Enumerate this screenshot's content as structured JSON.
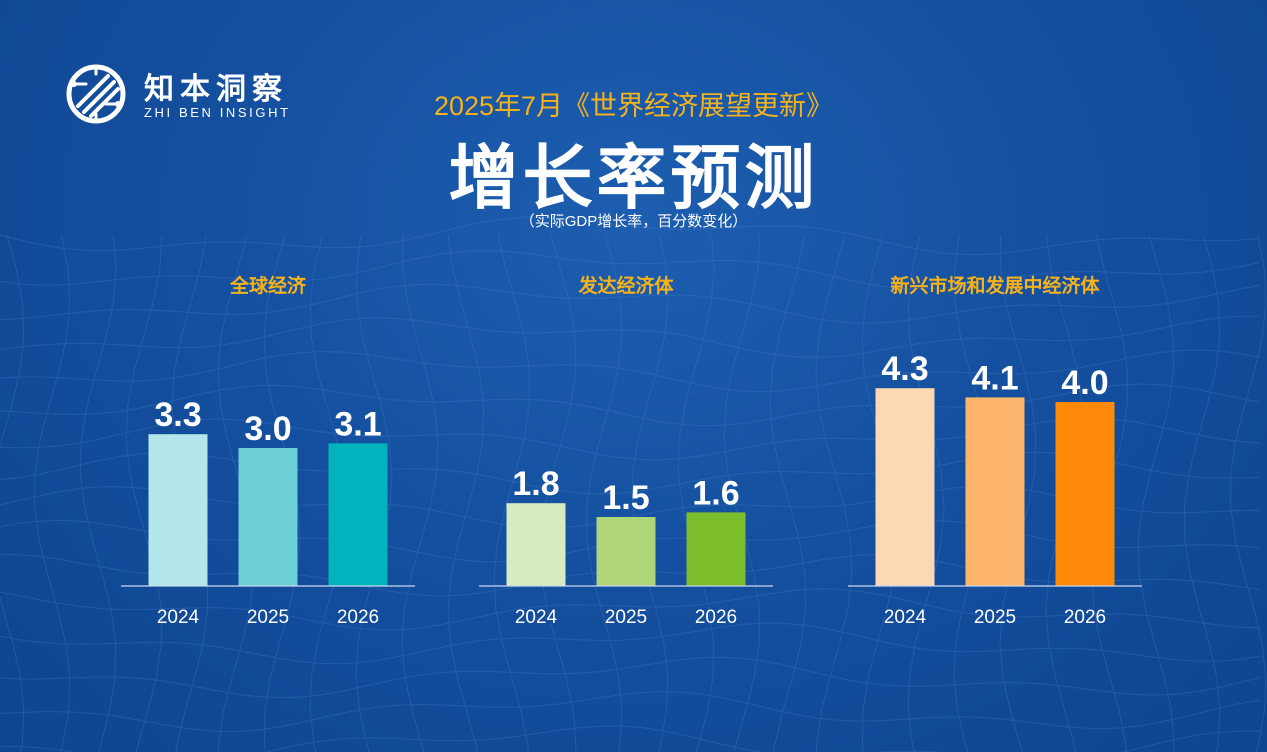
{
  "header": {
    "logo_cn": "知本洞察",
    "logo_en": "ZHI BEN INSIGHT",
    "subtitle": "2025年7月《世界经济展望更新》",
    "title": "增长率预测",
    "unit_note": "（实际GDP增长率，百分数变化）"
  },
  "colors": {
    "accent": "#f6b21b",
    "background": "#134d9c"
  },
  "chart_data": [
    {
      "type": "bar",
      "title": "全球经济",
      "categories": [
        "2024",
        "2025",
        "2026"
      ],
      "values": [
        3.3,
        3.0,
        3.1
      ],
      "labels": [
        "3.3",
        "3.0",
        "3.1"
      ],
      "colors": [
        "#b5e6ec",
        "#6dd0d6",
        "#02b3bd"
      ],
      "ylim": [
        0,
        5
      ]
    },
    {
      "type": "bar",
      "title": "发达经济体",
      "categories": [
        "2024",
        "2025",
        "2026"
      ],
      "values": [
        1.8,
        1.5,
        1.6
      ],
      "labels": [
        "1.8",
        "1.5",
        "1.6"
      ],
      "colors": [
        "#d6ebc0",
        "#aed679",
        "#7cbd2b"
      ],
      "ylim": [
        0,
        5
      ]
    },
    {
      "type": "bar",
      "title": "新兴市场和发展中经济体",
      "categories": [
        "2024",
        "2025",
        "2026"
      ],
      "values": [
        4.3,
        4.1,
        4.0
      ],
      "labels": [
        "4.3",
        "4.1",
        "4.0"
      ],
      "colors": [
        "#fcd9b2",
        "#fdb56c",
        "#ff8a0a"
      ],
      "ylim": [
        0,
        5
      ]
    }
  ]
}
